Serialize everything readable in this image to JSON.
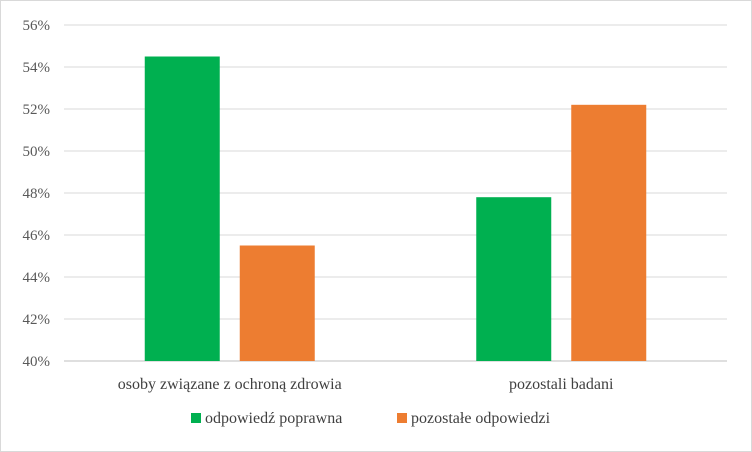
{
  "chart_data": {
    "type": "bar",
    "categories": [
      "osoby związane z ochroną zdrowia",
      "pozostali badani"
    ],
    "series": [
      {
        "name": "odpowiedź poprawna",
        "color": "#00b050",
        "values": [
          54.5,
          47.8
        ]
      },
      {
        "name": "pozostałe odpowiedzi",
        "color": "#ed7d31",
        "values": [
          45.5,
          52.2
        ]
      }
    ],
    "yticks": [
      "40%",
      "42%",
      "44%",
      "46%",
      "48%",
      "50%",
      "52%",
      "54%",
      "56%"
    ],
    "ylim": [
      40,
      56
    ],
    "unit": "%",
    "grid": true,
    "legend_position": "bottom"
  }
}
